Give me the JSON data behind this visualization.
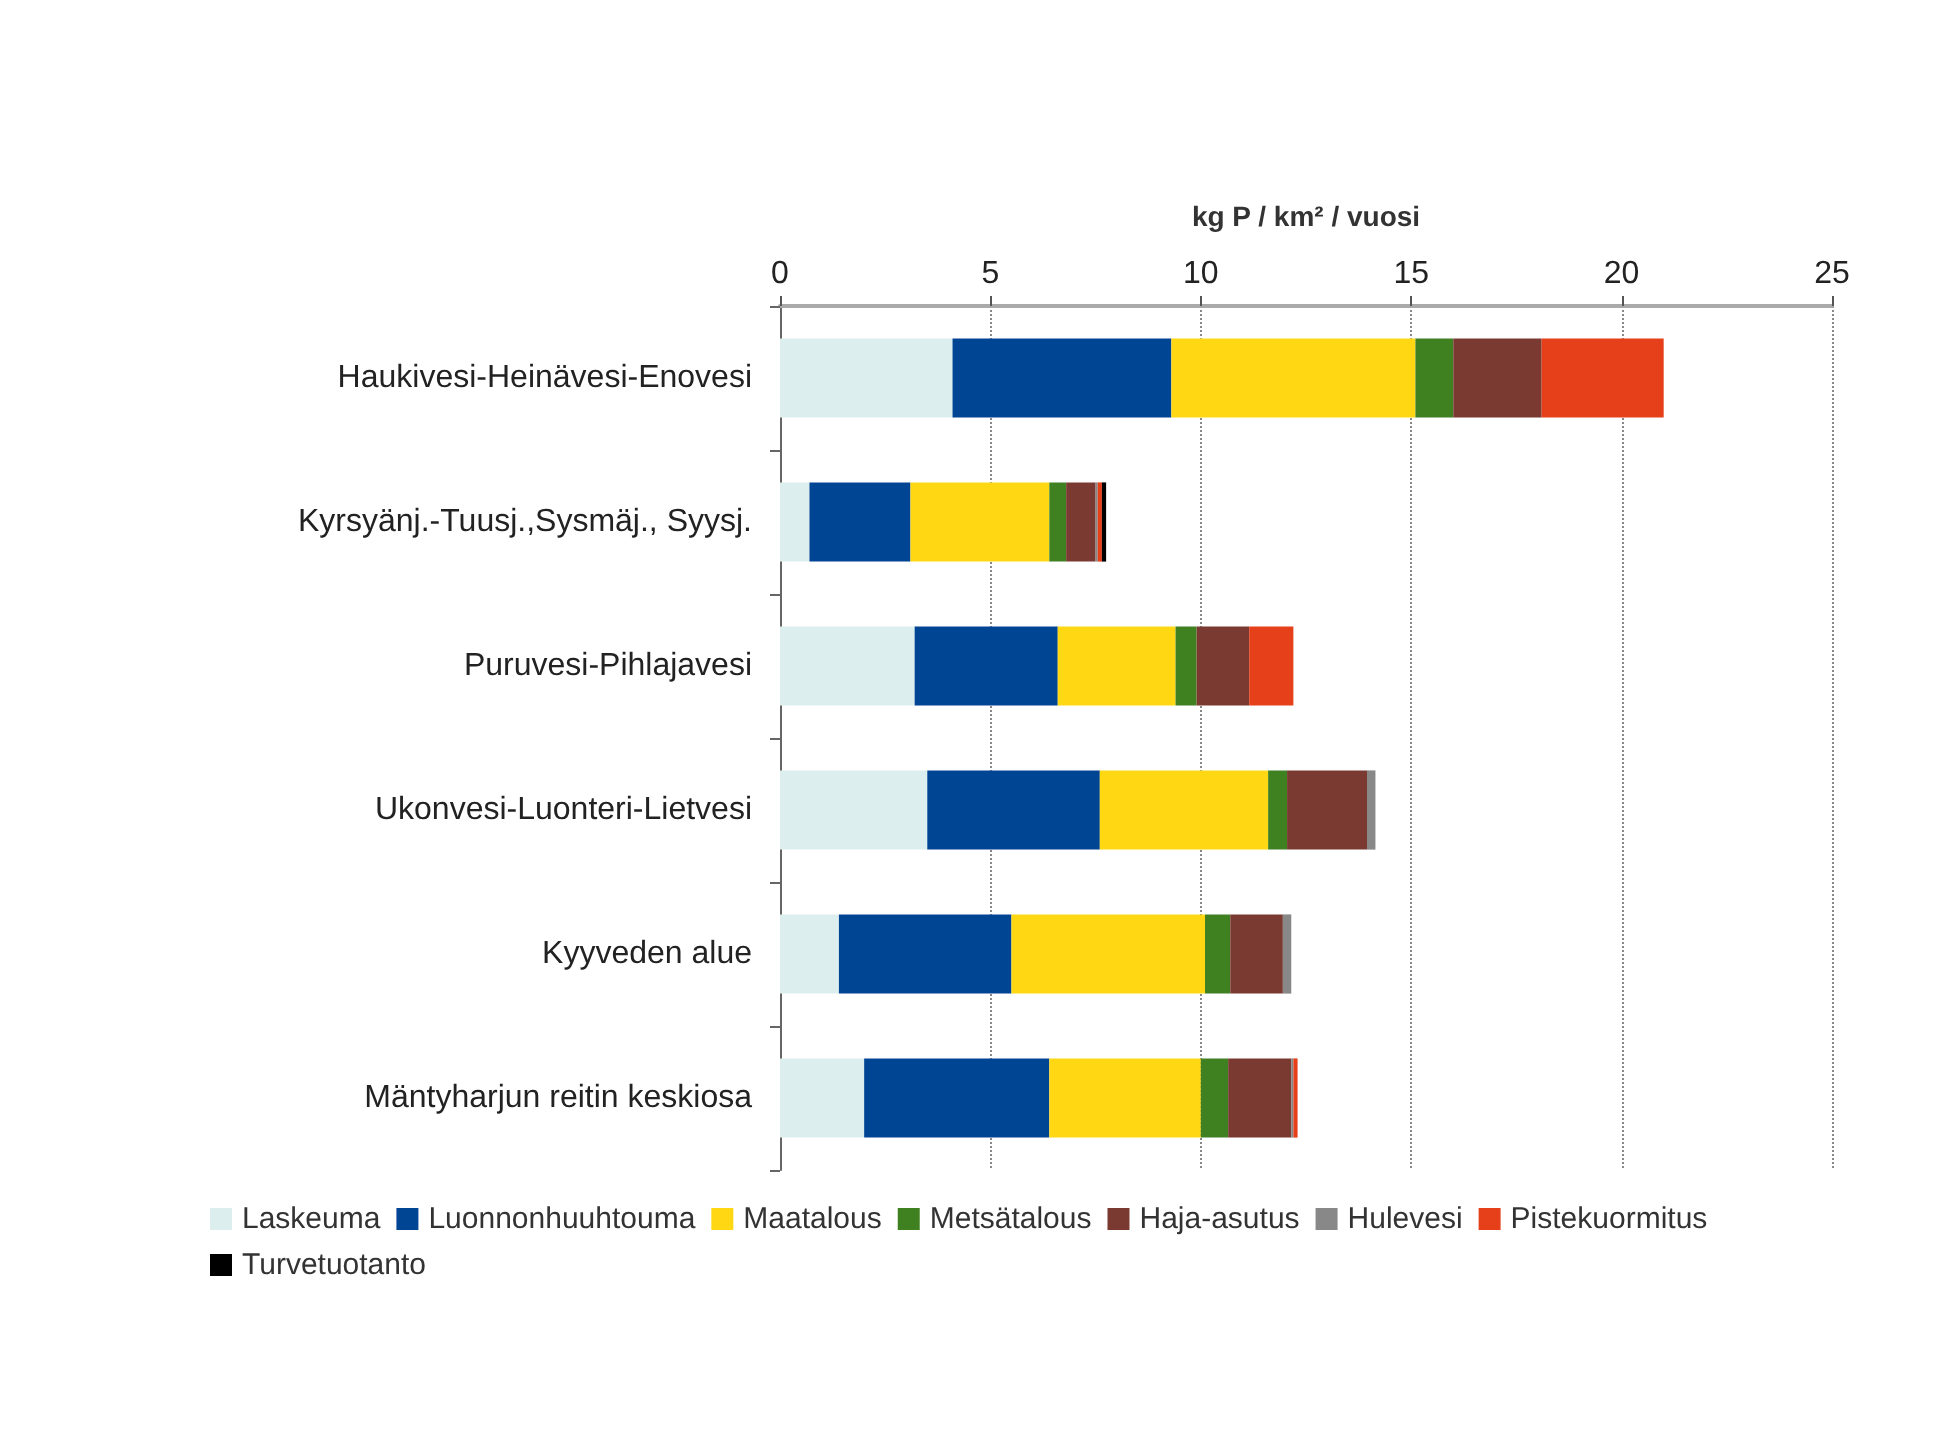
{
  "chart_data": {
    "type": "bar",
    "orientation": "horizontal",
    "stacked": true,
    "xlabel": "kg P / km² / vuosi",
    "categories": [
      "Haukivesi-Heinävesi-Enovesi",
      "Kyrsyänj.-Tuusj.,Sysmäj., Syysj.",
      "Puruvesi-Pihlajavesi",
      "Ukonvesi-Luonteri-Lietvesi",
      "Kyyveden alue",
      "Mäntyharjun reitin keskiosa"
    ],
    "series": [
      {
        "name": "Laskeuma",
        "color": "#ddeeee",
        "values": [
          4.1,
          0.7,
          3.2,
          3.5,
          1.4,
          2.0
        ]
      },
      {
        "name": "Luonnonhuuhtouma",
        "color": "#004494",
        "values": [
          5.2,
          2.4,
          3.4,
          4.1,
          4.1,
          4.4
        ]
      },
      {
        "name": "Maatalous",
        "color": "#ffd813",
        "values": [
          5.8,
          3.3,
          2.8,
          4.0,
          4.6,
          3.6
        ]
      },
      {
        "name": "Metsätalous",
        "color": "#3f8020",
        "values": [
          0.9,
          0.4,
          0.5,
          0.45,
          0.6,
          0.65
        ]
      },
      {
        "name": "Haja-asutus",
        "color": "#7a3a32",
        "values": [
          2.1,
          0.7,
          1.25,
          1.9,
          1.25,
          1.5
        ]
      },
      {
        "name": "Hulevesi",
        "color": "#888888",
        "values": [
          0,
          0.05,
          0,
          0.2,
          0.2,
          0.05
        ]
      },
      {
        "name": "Pistekuormitus",
        "color": "#e5401a",
        "values": [
          2.9,
          0.1,
          1.05,
          0,
          0,
          0.1
        ]
      },
      {
        "name": "Turvetuotanto",
        "color": "#000000",
        "values": [
          0,
          0.1,
          0,
          0,
          0,
          0
        ]
      }
    ],
    "xlim": [
      0,
      25
    ],
    "xticks": [
      0,
      5,
      10,
      15,
      20,
      25
    ],
    "grid": "x",
    "legend": "bottom"
  }
}
